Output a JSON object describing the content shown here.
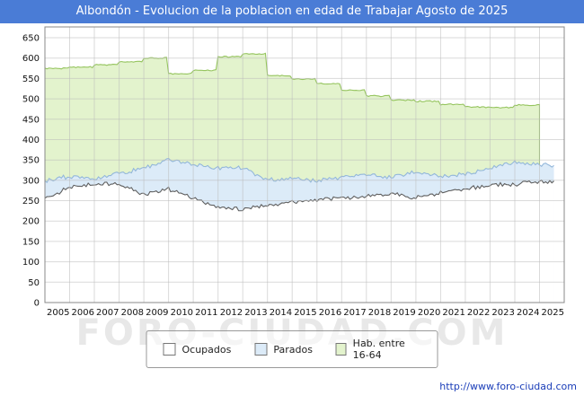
{
  "title_bar": {
    "title": "Albondón - Evolucion de la poblacion en edad de Trabajar Agosto de 2025",
    "bg_color": "#4a7cd6"
  },
  "watermark": "FORO-CIUDAD.COM",
  "footer": {
    "url": "http://www.foro-ciudad.com"
  },
  "legend": {
    "items": [
      {
        "label": "Ocupados",
        "fill": "#ffffff"
      },
      {
        "label": "Parados",
        "fill": "#dcebf8"
      },
      {
        "label": "Hab. entre 16-64",
        "fill": "#e3f3cd"
      }
    ]
  },
  "chart_data": {
    "type": "area",
    "title": "Albondón - Evolucion de la poblacion en edad de Trabajar Agosto de 2025",
    "ylim": [
      0,
      650
    ],
    "ytick_step": 50,
    "y_tick_labels": [
      "0",
      "50",
      "100",
      "150",
      "200",
      "250",
      "300",
      "350",
      "400",
      "450",
      "500",
      "550",
      "600",
      "650"
    ],
    "x_axis_range": [
      2005,
      2026
    ],
    "x_tick_labels": [
      "2005",
      "2006",
      "2007",
      "2008",
      "2009",
      "2010",
      "2011",
      "2012",
      "2013",
      "2014",
      "2015",
      "2016",
      "2017",
      "2018",
      "2019",
      "2020",
      "2021",
      "2022",
      "2023",
      "2024",
      "2025"
    ],
    "grid": true,
    "legend_position": "bottom",
    "note": "Monthly values estimated from the plot. The 'Parados' series records the top of the stacked band (Ocupados + Parados). 'Hab. entre 16-64' is an annual step series ending in 2024.",
    "series": [
      {
        "key": "hab1664",
        "name": "Hab. entre 16-64",
        "mode": "yearly-step",
        "x_from": 2005,
        "x_to": 2025.0,
        "fill": "#e3f3cd",
        "stroke": "#95c45e",
        "noise": 2,
        "values": [
          575,
          578,
          584,
          591,
          600,
          562,
          570,
          603,
          610,
          557,
          549,
          537,
          521,
          507,
          497,
          494,
          486,
          480,
          478,
          485
        ]
      },
      {
        "key": "parados",
        "name": "Parados",
        "mode": "monthly",
        "x_from": 2005,
        "x_to": 2025.5833,
        "fill": "#dcebf8",
        "stroke": "#93b7da",
        "noise": 6,
        "values": [
          298,
          310,
          303,
          316,
          330,
          350,
          340,
          330,
          332,
          300,
          304,
          299,
          308,
          314,
          309,
          320,
          311,
          315,
          330,
          344,
          338
        ]
      },
      {
        "key": "ocupados",
        "name": "Ocupados",
        "mode": "monthly",
        "x_from": 2005,
        "x_to": 2025.5833,
        "fill": "#ffffff",
        "stroke": "#5f5f5f",
        "noise": 6,
        "values": [
          255,
          283,
          290,
          293,
          264,
          279,
          257,
          233,
          229,
          239,
          247,
          251,
          257,
          261,
          267,
          257,
          271,
          279,
          287,
          291,
          297
        ]
      }
    ]
  }
}
